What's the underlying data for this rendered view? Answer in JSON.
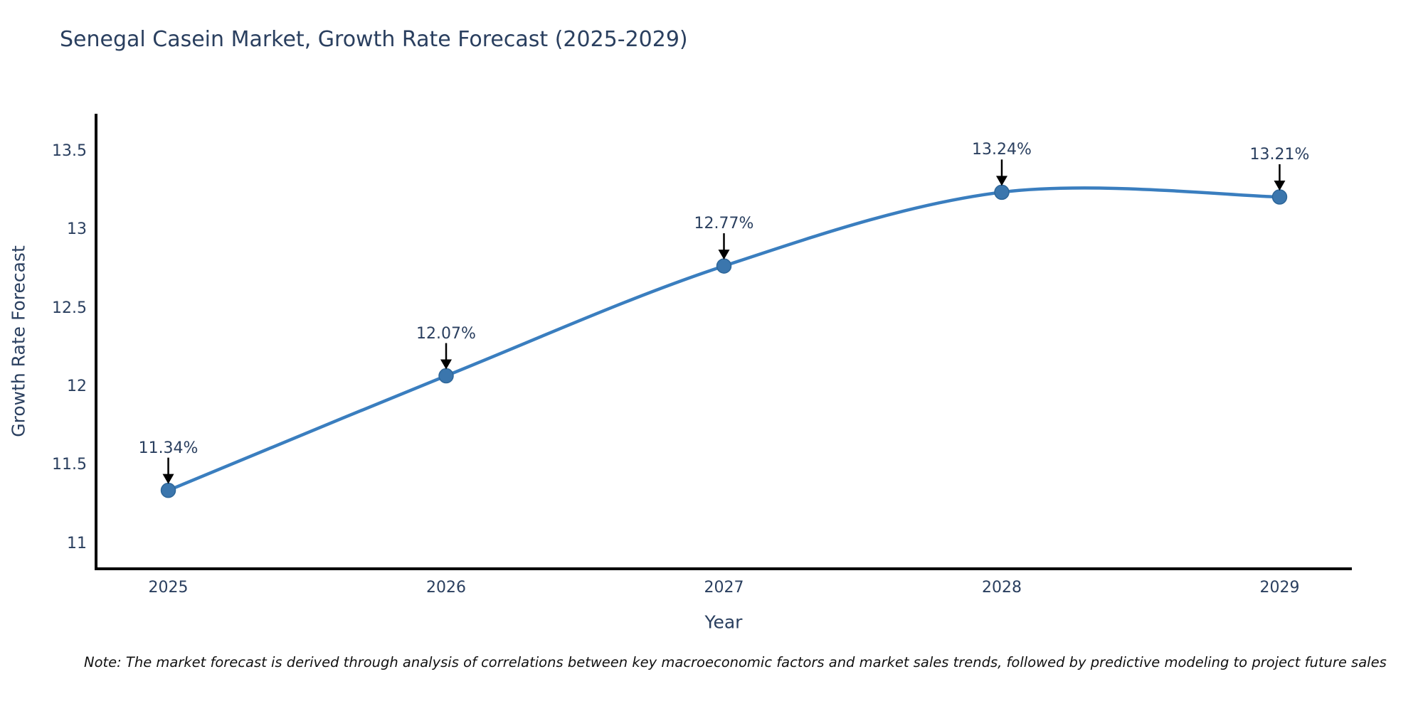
{
  "title": "Senegal Casein Market, Growth Rate Forecast (2025-2029)",
  "note": "Note: The market forecast is derived through analysis of correlations between key macroeconomic factors and market sales trends, followed by predictive modeling to project future sales",
  "chart_data": {
    "type": "line",
    "title": "Senegal Casein Market, Growth Rate Forecast (2025-2029)",
    "xlabel": "Year",
    "ylabel": "Growth Rate Forecast",
    "x": [
      2025,
      2026,
      2027,
      2028,
      2029
    ],
    "y": [
      11.34,
      12.07,
      12.77,
      13.24,
      13.21
    ],
    "point_labels": [
      "11.34%",
      "12.07%",
      "12.77%",
      "13.24%",
      "13.21%"
    ],
    "xticks": [
      "2025",
      "2026",
      "2027",
      "2028",
      "2029"
    ],
    "xtick_values": [
      2025,
      2026,
      2027,
      2028,
      2029
    ],
    "yticks": [
      "11",
      "11.5",
      "12",
      "12.5",
      "13",
      "13.5"
    ],
    "ytick_values": [
      11,
      11.5,
      12,
      12.5,
      13,
      13.5
    ],
    "xlim": [
      2024.74,
      2029.26
    ],
    "ylim": [
      10.84,
      13.74
    ],
    "grid": false,
    "legend": "none",
    "line_shape": "spline",
    "marker": "circle",
    "colors": {
      "line": "#3a7ebf",
      "marker_fill": "#3b76ad",
      "marker_edge": "#2d6699",
      "axis_line": "#000000",
      "arrow": "#000000",
      "text": "#2a3f5f",
      "note_text": "#111111",
      "background": "#ffffff"
    }
  }
}
